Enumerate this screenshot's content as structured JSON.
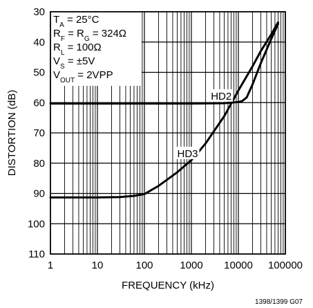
{
  "chart_data": {
    "type": "line",
    "xlabel": "FREQUENCY (kHz)",
    "ylabel": "DISTORTION (dB)",
    "x_scale": "log",
    "xlim": [
      1,
      100000
    ],
    "ylim": [
      30,
      110
    ],
    "y_inverted": true,
    "grid": true,
    "x_ticks": [
      1,
      10,
      100,
      1000,
      10000,
      100000
    ],
    "x_tick_labels": [
      "1",
      "10",
      "100",
      "1000",
      "10000",
      "100000"
    ],
    "y_ticks": [
      30,
      40,
      50,
      60,
      70,
      80,
      90,
      100,
      110
    ],
    "y_tick_labels": [
      "30",
      "40",
      "50",
      "60",
      "70",
      "80",
      "90",
      "100",
      "110"
    ],
    "series": [
      {
        "name": "HD2",
        "x": [
          1,
          10,
          100,
          1000,
          5000,
          10000,
          12000,
          15000,
          20000,
          30000,
          50000,
          70000
        ],
        "y": [
          60.3,
          60.3,
          60.3,
          60.3,
          60.2,
          59.8,
          59.5,
          58.3,
          54,
          47,
          39,
          34
        ]
      },
      {
        "name": "HD3",
        "x": [
          1,
          10,
          30,
          60,
          100,
          200,
          500,
          1000,
          1300,
          2000,
          5000,
          10000,
          20000,
          30000,
          50000,
          70000
        ],
        "y": [
          91.3,
          91.3,
          91.2,
          90.8,
          90.2,
          87.5,
          83,
          79,
          77,
          73.5,
          64.5,
          56,
          48,
          43,
          37.5,
          33.5
        ]
      }
    ],
    "annotations": [
      {
        "text": "HD2",
        "x": 2600,
        "y": 59
      },
      {
        "text": "HD3",
        "x": 500,
        "y": 78
      }
    ],
    "conditions": [
      {
        "base": "T",
        "sub": "A",
        "rest": " = 25°C"
      },
      {
        "base": "R",
        "sub": "F",
        "mid": " = R",
        "sub2": "G",
        "rest": " = 324Ω"
      },
      {
        "base": "R",
        "sub": "L",
        "rest": " = 100Ω"
      },
      {
        "base": "V",
        "sub": "S",
        "rest": " = ±5V"
      },
      {
        "base": "V",
        "sub": "OUT",
        "rest": " = 2VPP"
      }
    ],
    "figure_id": "1398/1399 G07"
  }
}
